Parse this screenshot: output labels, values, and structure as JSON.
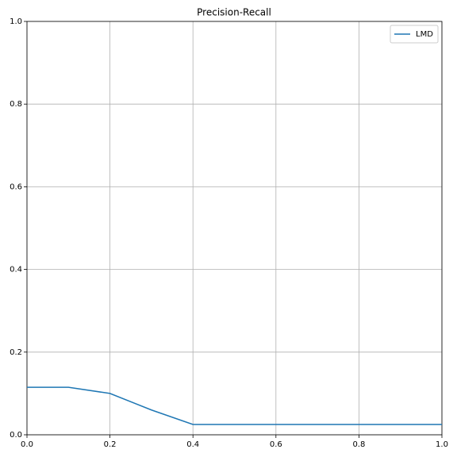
{
  "chart_data": {
    "type": "line",
    "title": "Precision-Recall",
    "x": [
      0,
      0.1,
      0.2,
      0.3,
      0.4,
      0.5,
      0.6,
      0.7,
      0.8,
      0.9,
      1.0
    ],
    "series": [
      {
        "name": "LMD",
        "color": "#1f77b4",
        "values": [
          0.115,
          0.115,
          0.1,
          0.06,
          0.025,
          0.025,
          0.025,
          0.025,
          0.025,
          0.025,
          0.025
        ]
      }
    ],
    "xlim": [
      0,
      1
    ],
    "ylim": [
      0,
      1
    ],
    "xticks": [
      {
        "value": 0,
        "label": "0.0"
      },
      0.2,
      0.4,
      0.6,
      0.8,
      {
        "value": 1,
        "label": "1.0"
      }
    ],
    "yticks": [
      {
        "value": 0,
        "label": "0.0"
      },
      0.2,
      0.4,
      0.6,
      0.8,
      {
        "value": 1,
        "label": "1.0"
      }
    ],
    "grid": true,
    "legend": "upper right"
  }
}
